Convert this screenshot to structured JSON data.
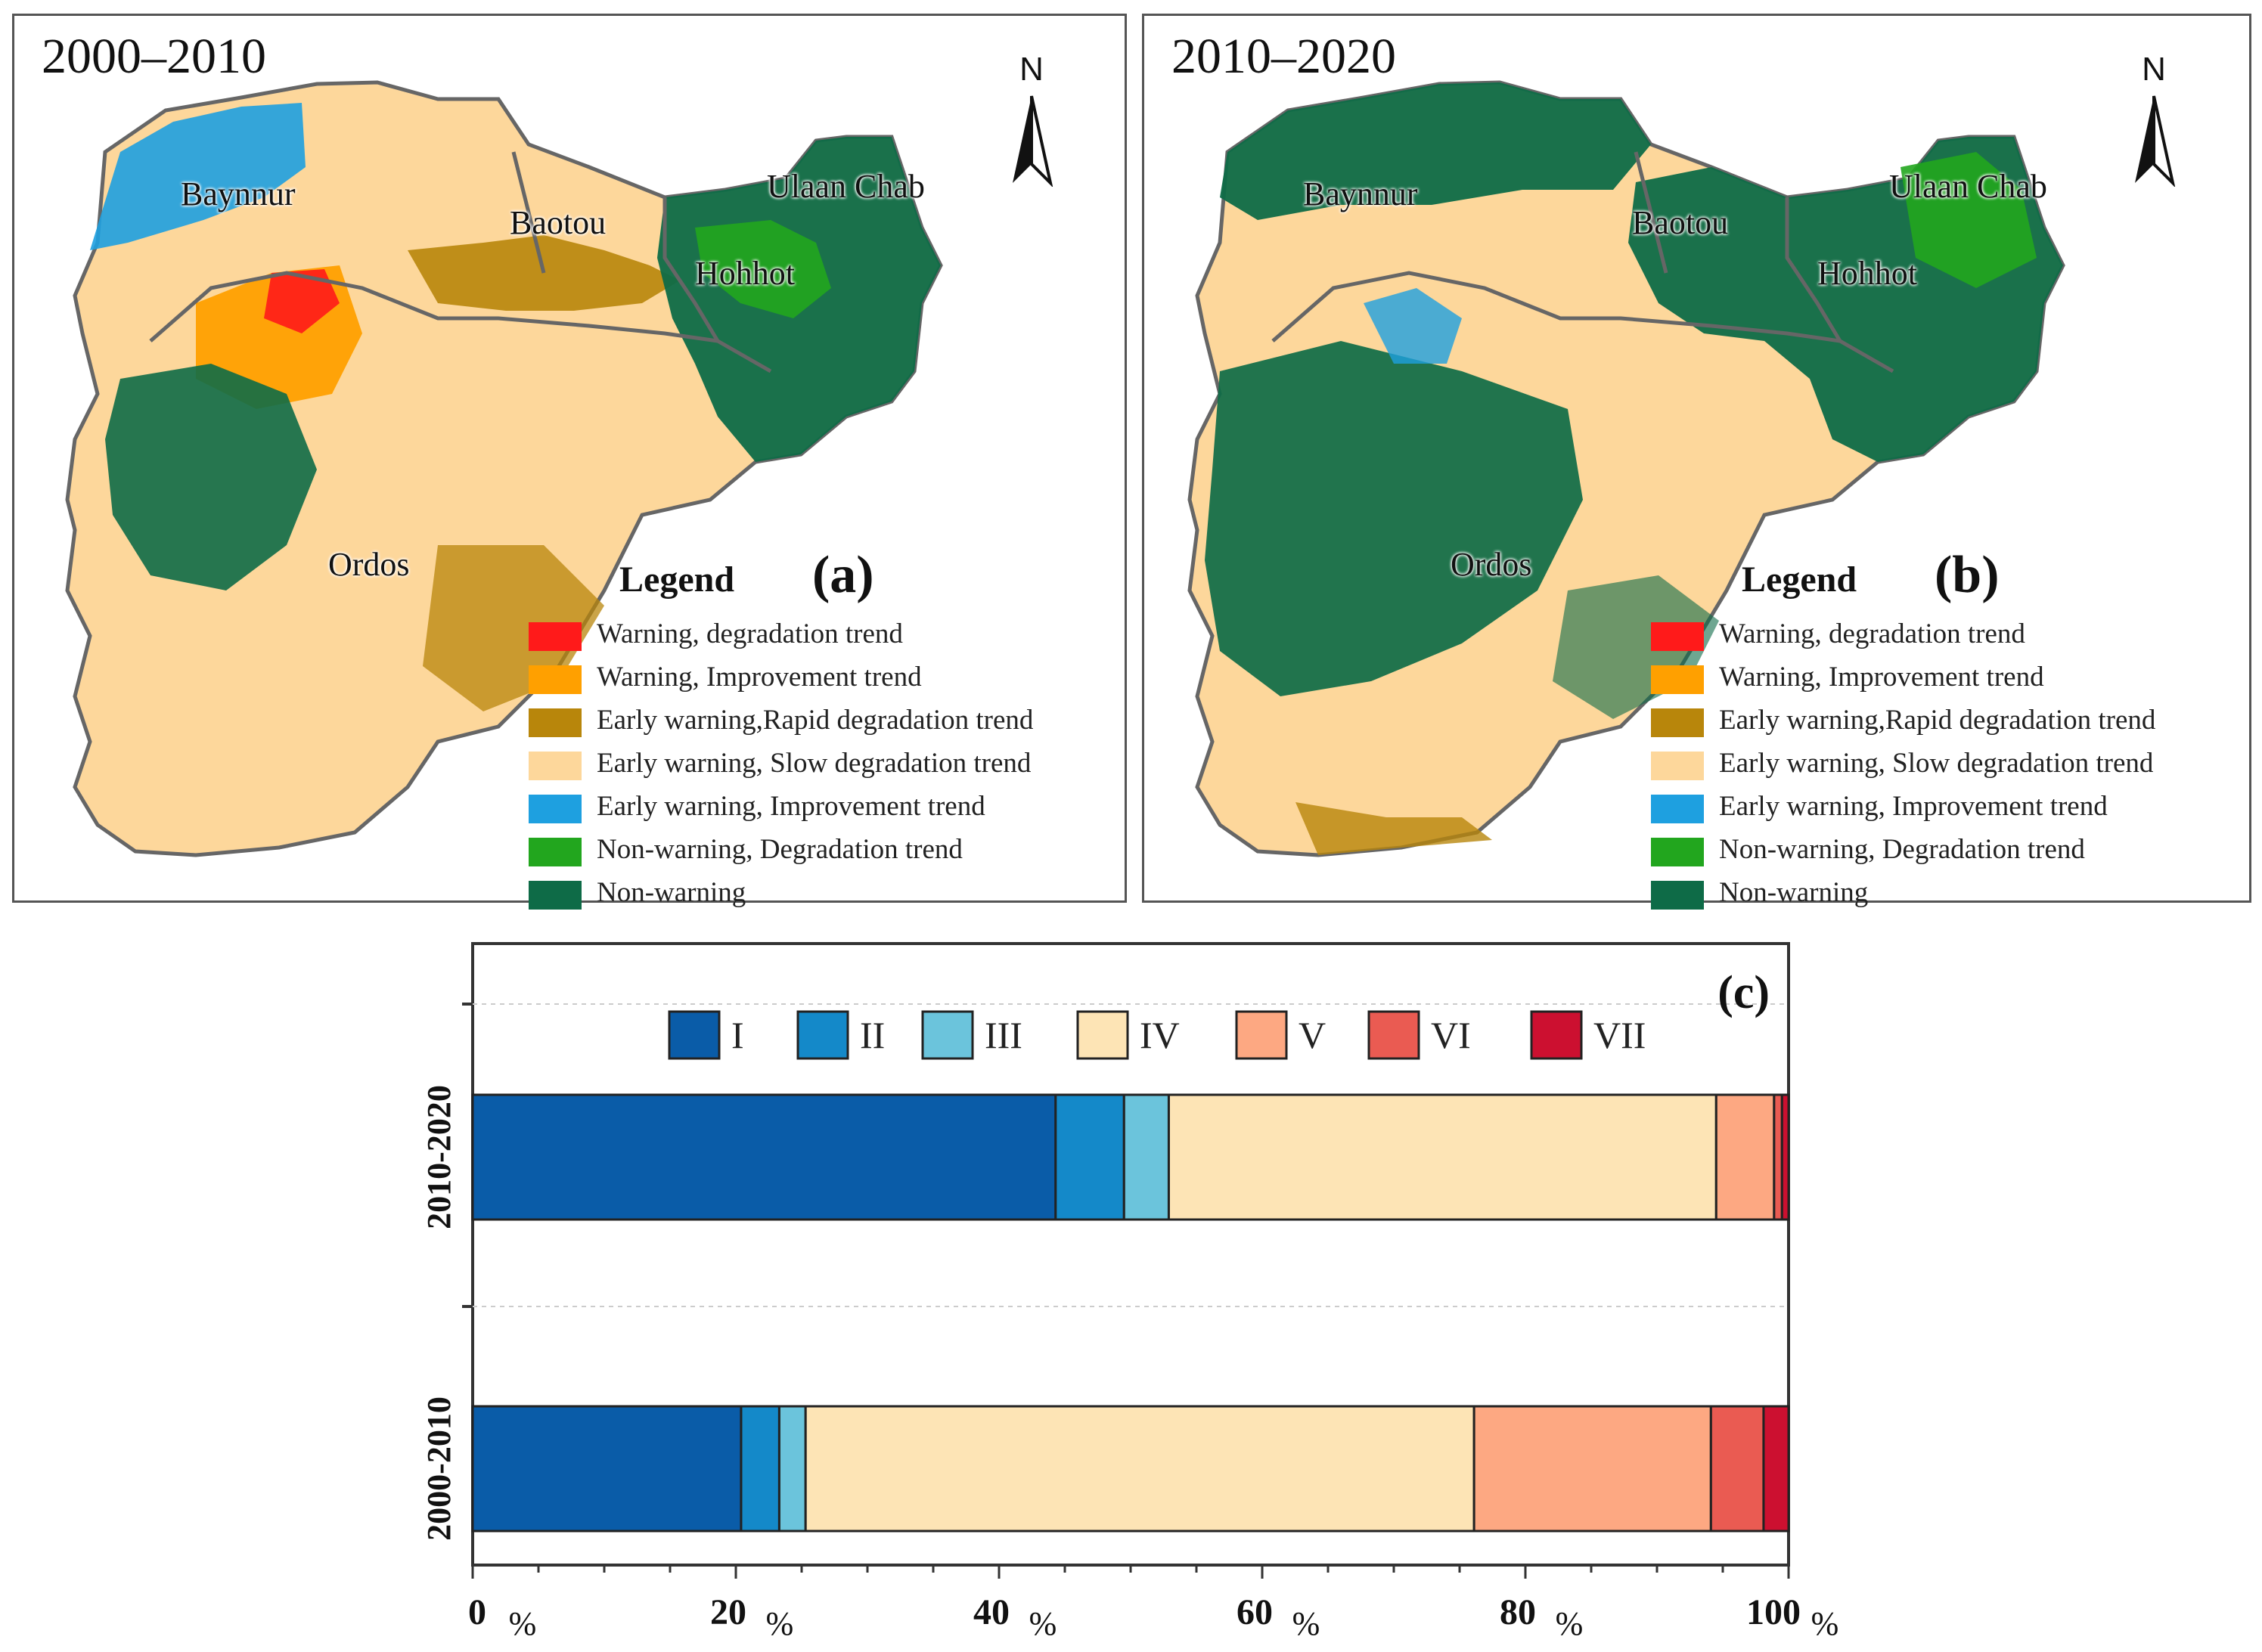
{
  "panels": [
    {
      "id": "a",
      "title": "2000–2010",
      "letter": "(a)",
      "places": {
        "baynnur": "Baynnur",
        "baotou": "Baotou",
        "ulaanchab": "Ulaan Chab",
        "hohhot": "Hohhot",
        "ordos": "Ordos"
      }
    },
    {
      "id": "b",
      "title": "2010–2020",
      "letter": "(b)",
      "places": {
        "baynnur": "Baynnur",
        "baotou": "Baotou",
        "ulaanchab": "Ulaan Chab",
        "hohhot": "Hohhot",
        "ordos": "Ordos"
      }
    }
  ],
  "north_label": "N",
  "legend": {
    "title": "Legend",
    "items": [
      {
        "label": "Warning, degradation trend",
        "color": "#ff1a1a"
      },
      {
        "label": "Warning, Improvement trend",
        "color": "#ffa000"
      },
      {
        "label": "Early warning,Rapid degradation trend",
        "color": "#b8860b"
      },
      {
        "label": "Early warning, Slow degradation trend",
        "color": "#fdd79b"
      },
      {
        "label": "Early warning, Improvement trend",
        "color": "#1ea0e0"
      },
      {
        "label": "Non-warning, Degradation trend",
        "color": "#22a61e"
      },
      {
        "label": "Non-warning",
        "color": "#0e6b47"
      }
    ]
  },
  "chart_data": {
    "type": "bar",
    "orientation": "horizontal",
    "stacked": true,
    "panel_letter": "(c)",
    "categories": [
      "2010-2020",
      "2000-2010"
    ],
    "series": [
      {
        "name": "I",
        "color": "#0a5ca8",
        "values": [
          44.3,
          20.4
        ]
      },
      {
        "name": "II",
        "color": "#1489c9",
        "values": [
          5.2,
          2.9
        ]
      },
      {
        "name": "III",
        "color": "#6bc4dc",
        "values": [
          3.4,
          2.0
        ]
      },
      {
        "name": "IV",
        "color": "#fde4b5",
        "values": [
          41.6,
          50.8
        ]
      },
      {
        "name": "V",
        "color": "#fda882",
        "values": [
          4.4,
          18.0
        ]
      },
      {
        "name": "VI",
        "color": "#ea5b52",
        "values": [
          0.6,
          4.0
        ]
      },
      {
        "name": "VII",
        "color": "#cc1030",
        "values": [
          0.5,
          1.9
        ]
      }
    ],
    "xlim": [
      0,
      100
    ],
    "xticks": [
      "0",
      "20",
      "40",
      "60",
      "80",
      "100"
    ],
    "xtick_unit": "%",
    "legend_position": "top"
  }
}
